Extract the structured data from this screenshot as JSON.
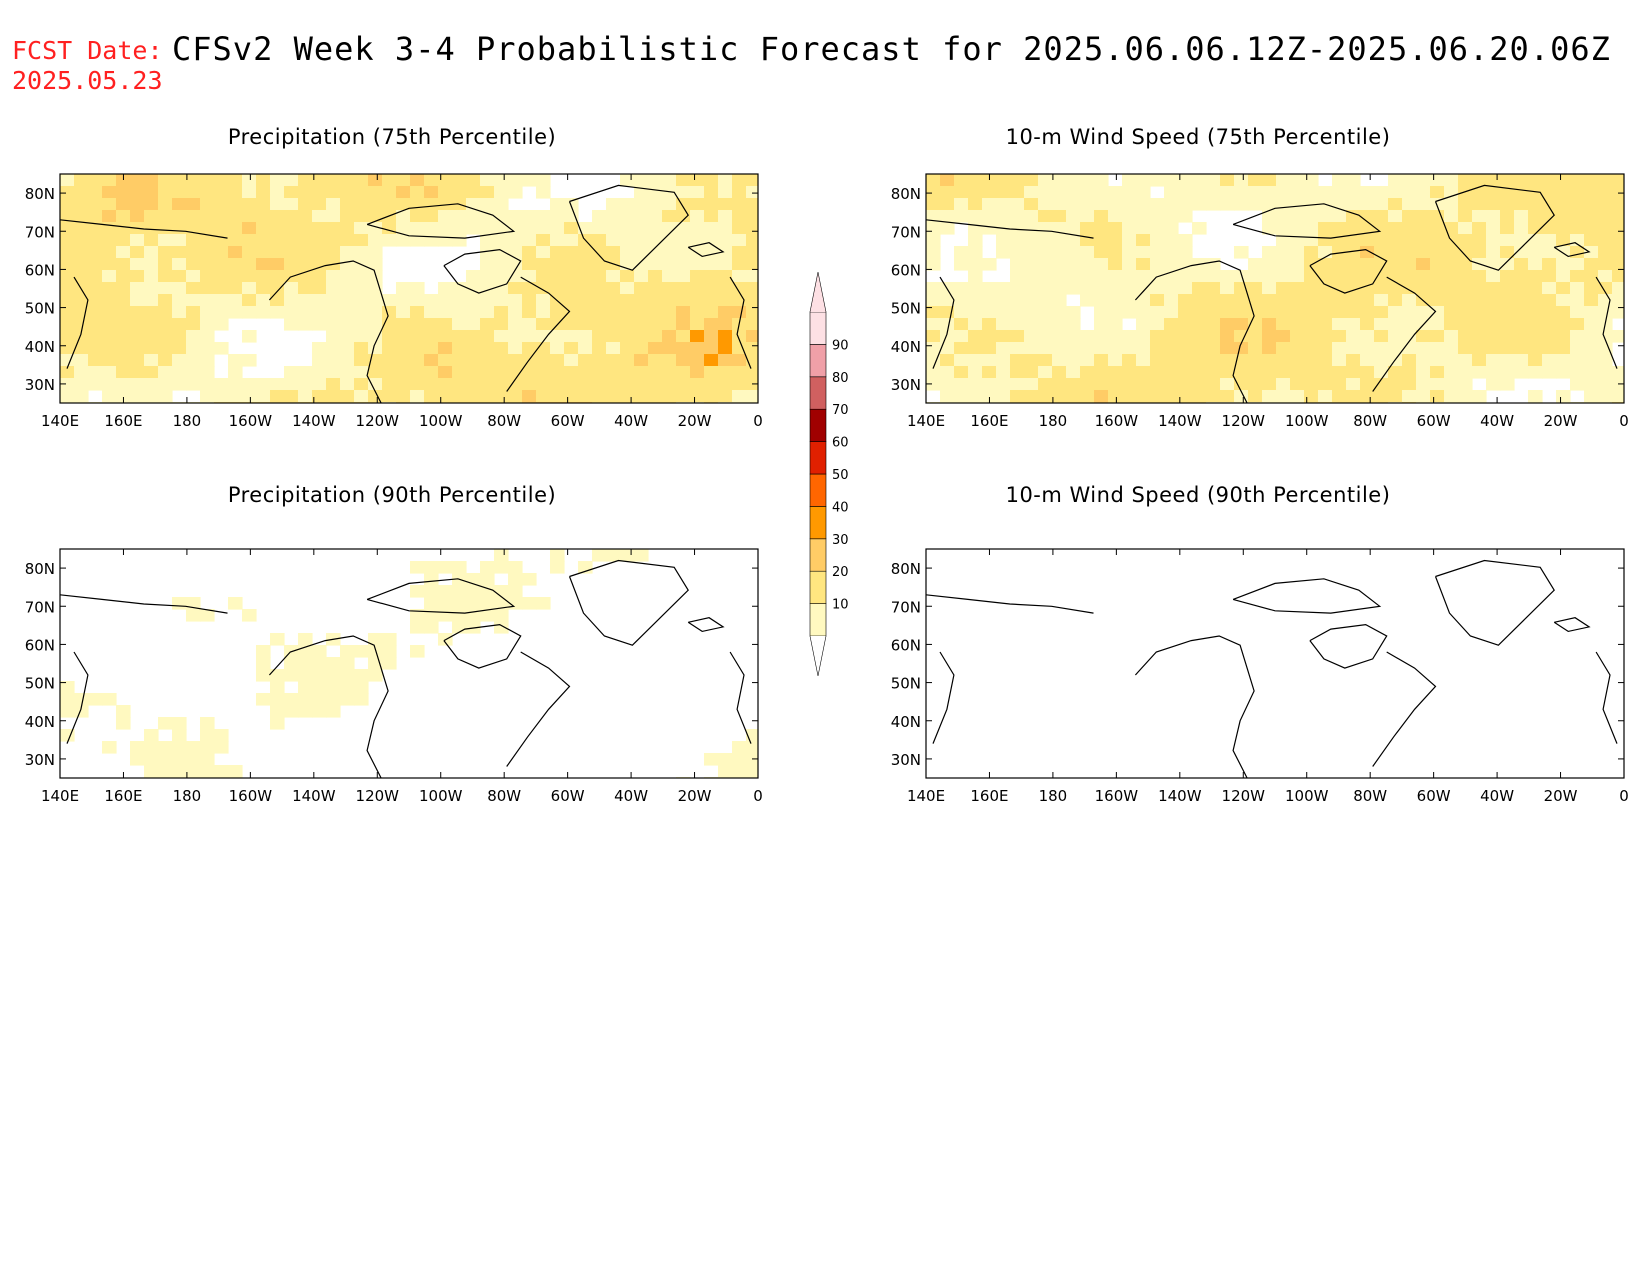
{
  "header": {
    "fcst_label": "FCST Date:",
    "fcst_date": "2025.05.23",
    "title": "CFSv2 Week 3-4 Probabilistic Forecast for 2025.06.06.12Z-2025.06.20.06Z"
  },
  "panels": [
    {
      "title": "Precipitation (75th Percentile)",
      "field": "precip-75",
      "intensity": 0.7
    },
    {
      "title": "10-m Wind Speed (75th Percentile)",
      "field": "wind-75",
      "intensity": 0.62
    },
    {
      "title": "Precipitation (90th Percentile)",
      "field": "precip-90",
      "intensity": 0.18
    },
    {
      "title": "10-m Wind Speed (90th Percentile)",
      "field": "wind-90",
      "intensity": 0.12
    }
  ],
  "axes": {
    "lon_labels": [
      "140E",
      "160E",
      "180",
      "160W",
      "140W",
      "120W",
      "100W",
      "80W",
      "60W",
      "40W",
      "20W",
      "0"
    ],
    "lat_labels": [
      "30N",
      "40N",
      "50N",
      "60N",
      "70N",
      "80N"
    ]
  },
  "colorbar": {
    "labels": [
      "10",
      "20",
      "30",
      "40",
      "50",
      "60",
      "70",
      "80",
      "90"
    ],
    "colors": [
      "#fff9c0",
      "#ffe680",
      "#ffcc66",
      "#ff9900",
      "#ff6600",
      "#e02000",
      "#a00000",
      "#d06060",
      "#f0a0a8",
      "#fde0e4"
    ]
  }
}
